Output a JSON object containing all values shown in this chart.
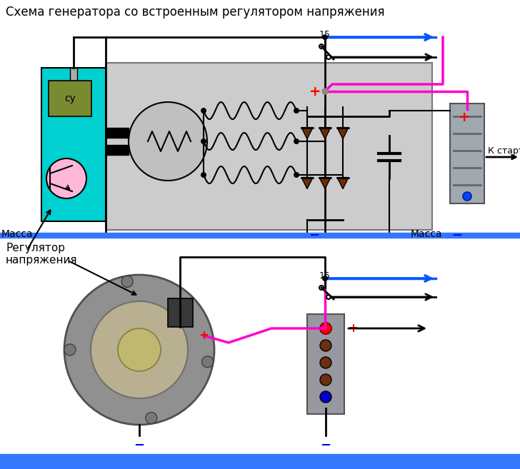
{
  "title": "Схема генератора со встроенным регулятором напряжения",
  "title_fontsize": 12,
  "label_massa": "Масса",
  "label_k_starter": "К стартеру",
  "label_regulator": "Регулятор\nнапряжения",
  "label_15": "15",
  "label_su": "су",
  "label_plus": "+",
  "label_minus": "−",
  "bg_color": "#ffffff",
  "diagram_bg": "#cccccc",
  "cyan_box_color": "#00d0d0",
  "su_box_color": "#7a8a30",
  "wire_blue": "#0055ff",
  "wire_pink": "#ff00cc",
  "wire_black": "#000000",
  "diode_color": "#6b2d00",
  "batt_color": "#909090",
  "ground_bar_color": "#3377ff",
  "bottom_bar_color": "#3377ff",
  "fig_w": 7.28,
  "fig_h": 6.57,
  "dpi": 100
}
